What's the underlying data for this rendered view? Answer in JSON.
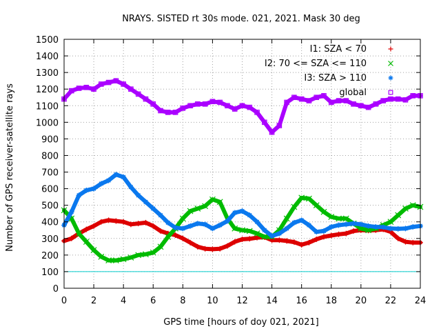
{
  "chart_data": {
    "type": "scatter",
    "title": "NRAYS. SISTED rt 30s mode. 021, 2021. Mask 30 deg",
    "xlabel": "GPS time [hours of doy 021, 2021]",
    "ylabel": "Number of GPS receiver-satellite rays",
    "xlim": [
      0,
      24
    ],
    "ylim": [
      0,
      1500
    ],
    "xticks": [
      0,
      2,
      4,
      6,
      8,
      10,
      12,
      14,
      16,
      18,
      20,
      22,
      24
    ],
    "yticks": [
      0,
      100,
      200,
      300,
      400,
      500,
      600,
      700,
      800,
      900,
      1000,
      1100,
      1200,
      1300,
      1400,
      1500
    ],
    "grid": true,
    "legend_position": "top-right",
    "reference_line": {
      "y": 100,
      "color": "#00cccc"
    },
    "series": [
      {
        "name": "I1: SZA < 70",
        "marker": "+",
        "color": "#dd0000",
        "x": [
          0,
          0.5,
          1,
          1.5,
          2,
          2.5,
          3,
          3.5,
          4,
          4.5,
          5,
          5.5,
          6,
          6.5,
          7,
          7.5,
          8,
          8.5,
          9,
          9.5,
          10,
          10.5,
          11,
          11.5,
          12,
          12.5,
          13,
          13.5,
          14,
          14.5,
          15,
          15.5,
          16,
          16.5,
          17,
          17.5,
          18,
          18.5,
          19,
          19.5,
          20,
          20.5,
          21,
          21.5,
          22,
          22.5,
          23,
          23.5,
          24
        ],
        "y": [
          285,
          300,
          330,
          355,
          375,
          400,
          410,
          405,
          400,
          385,
          390,
          395,
          375,
          345,
          330,
          320,
          300,
          275,
          250,
          238,
          235,
          238,
          255,
          280,
          295,
          298,
          305,
          308,
          290,
          290,
          285,
          278,
          262,
          275,
          295,
          310,
          318,
          325,
          330,
          345,
          350,
          348,
          350,
          355,
          340,
          300,
          280,
          275,
          275
        ]
      },
      {
        "name": "I2: 70 <= SZA <= 110",
        "marker": "x",
        "color": "#00bb00",
        "x": [
          0,
          0.5,
          1,
          1.5,
          2,
          2.5,
          3,
          3.5,
          4,
          4.5,
          5,
          5.5,
          6,
          6.5,
          7,
          7.5,
          8,
          8.5,
          9,
          9.5,
          10,
          10.5,
          11,
          11.5,
          12,
          12.5,
          13,
          13.5,
          14,
          14.5,
          15,
          15.5,
          16,
          16.5,
          17,
          17.5,
          18,
          18.5,
          19,
          19.5,
          20,
          20.5,
          21,
          21.5,
          22,
          22.5,
          23,
          23.5,
          24
        ],
        "y": [
          470,
          420,
          330,
          280,
          230,
          190,
          168,
          168,
          175,
          185,
          200,
          205,
          215,
          250,
          310,
          360,
          420,
          465,
          480,
          495,
          535,
          520,
          420,
          360,
          350,
          345,
          330,
          310,
          310,
          350,
          420,
          490,
          545,
          540,
          500,
          460,
          430,
          420,
          420,
          390,
          360,
          350,
          360,
          380,
          400,
          440,
          480,
          500,
          490
        ]
      },
      {
        "name": "I3: SZA > 110",
        "marker": "*",
        "color": "#0a78ee",
        "x": [
          0,
          0.5,
          1,
          1.5,
          2,
          2.5,
          3,
          3.5,
          4,
          4.5,
          5,
          5.5,
          6,
          6.5,
          7,
          7.5,
          8,
          8.5,
          9,
          9.5,
          10,
          10.5,
          11,
          11.5,
          12,
          12.5,
          13,
          13.5,
          14,
          14.5,
          15,
          15.5,
          16,
          16.5,
          17,
          17.5,
          18,
          18.5,
          19,
          19.5,
          20,
          20.5,
          21,
          21.5,
          22,
          22.5,
          23,
          23.5,
          24
        ],
        "y": [
          380,
          460,
          560,
          590,
          600,
          630,
          650,
          685,
          670,
          610,
          560,
          520,
          480,
          440,
          395,
          365,
          360,
          375,
          390,
          385,
          360,
          380,
          405,
          455,
          465,
          440,
          400,
          350,
          315,
          330,
          360,
          395,
          410,
          380,
          340,
          345,
          370,
          380,
          385,
          390,
          385,
          375,
          370,
          368,
          360,
          358,
          360,
          370,
          375
        ]
      },
      {
        "name": "global",
        "marker": "square",
        "color": "#aa00ff",
        "x": [
          0,
          0.5,
          1,
          1.5,
          2,
          2.5,
          3,
          3.5,
          4,
          4.5,
          5,
          5.5,
          6,
          6.5,
          7,
          7.5,
          8,
          8.5,
          9,
          9.5,
          10,
          10.5,
          11,
          11.5,
          12,
          12.5,
          13,
          13.5,
          14,
          14.5,
          15,
          15.5,
          16,
          16.5,
          17,
          17.5,
          18,
          18.5,
          19,
          19.5,
          20,
          20.5,
          21,
          21.5,
          22,
          22.5,
          23,
          23.5,
          24
        ],
        "y": [
          1140,
          1190,
          1205,
          1210,
          1200,
          1230,
          1240,
          1250,
          1230,
          1200,
          1170,
          1140,
          1110,
          1070,
          1060,
          1060,
          1085,
          1100,
          1110,
          1110,
          1125,
          1120,
          1100,
          1080,
          1100,
          1090,
          1060,
          1000,
          940,
          980,
          1120,
          1150,
          1140,
          1130,
          1150,
          1160,
          1120,
          1130,
          1130,
          1110,
          1100,
          1090,
          1110,
          1130,
          1140,
          1140,
          1135,
          1160,
          1160
        ]
      }
    ]
  }
}
